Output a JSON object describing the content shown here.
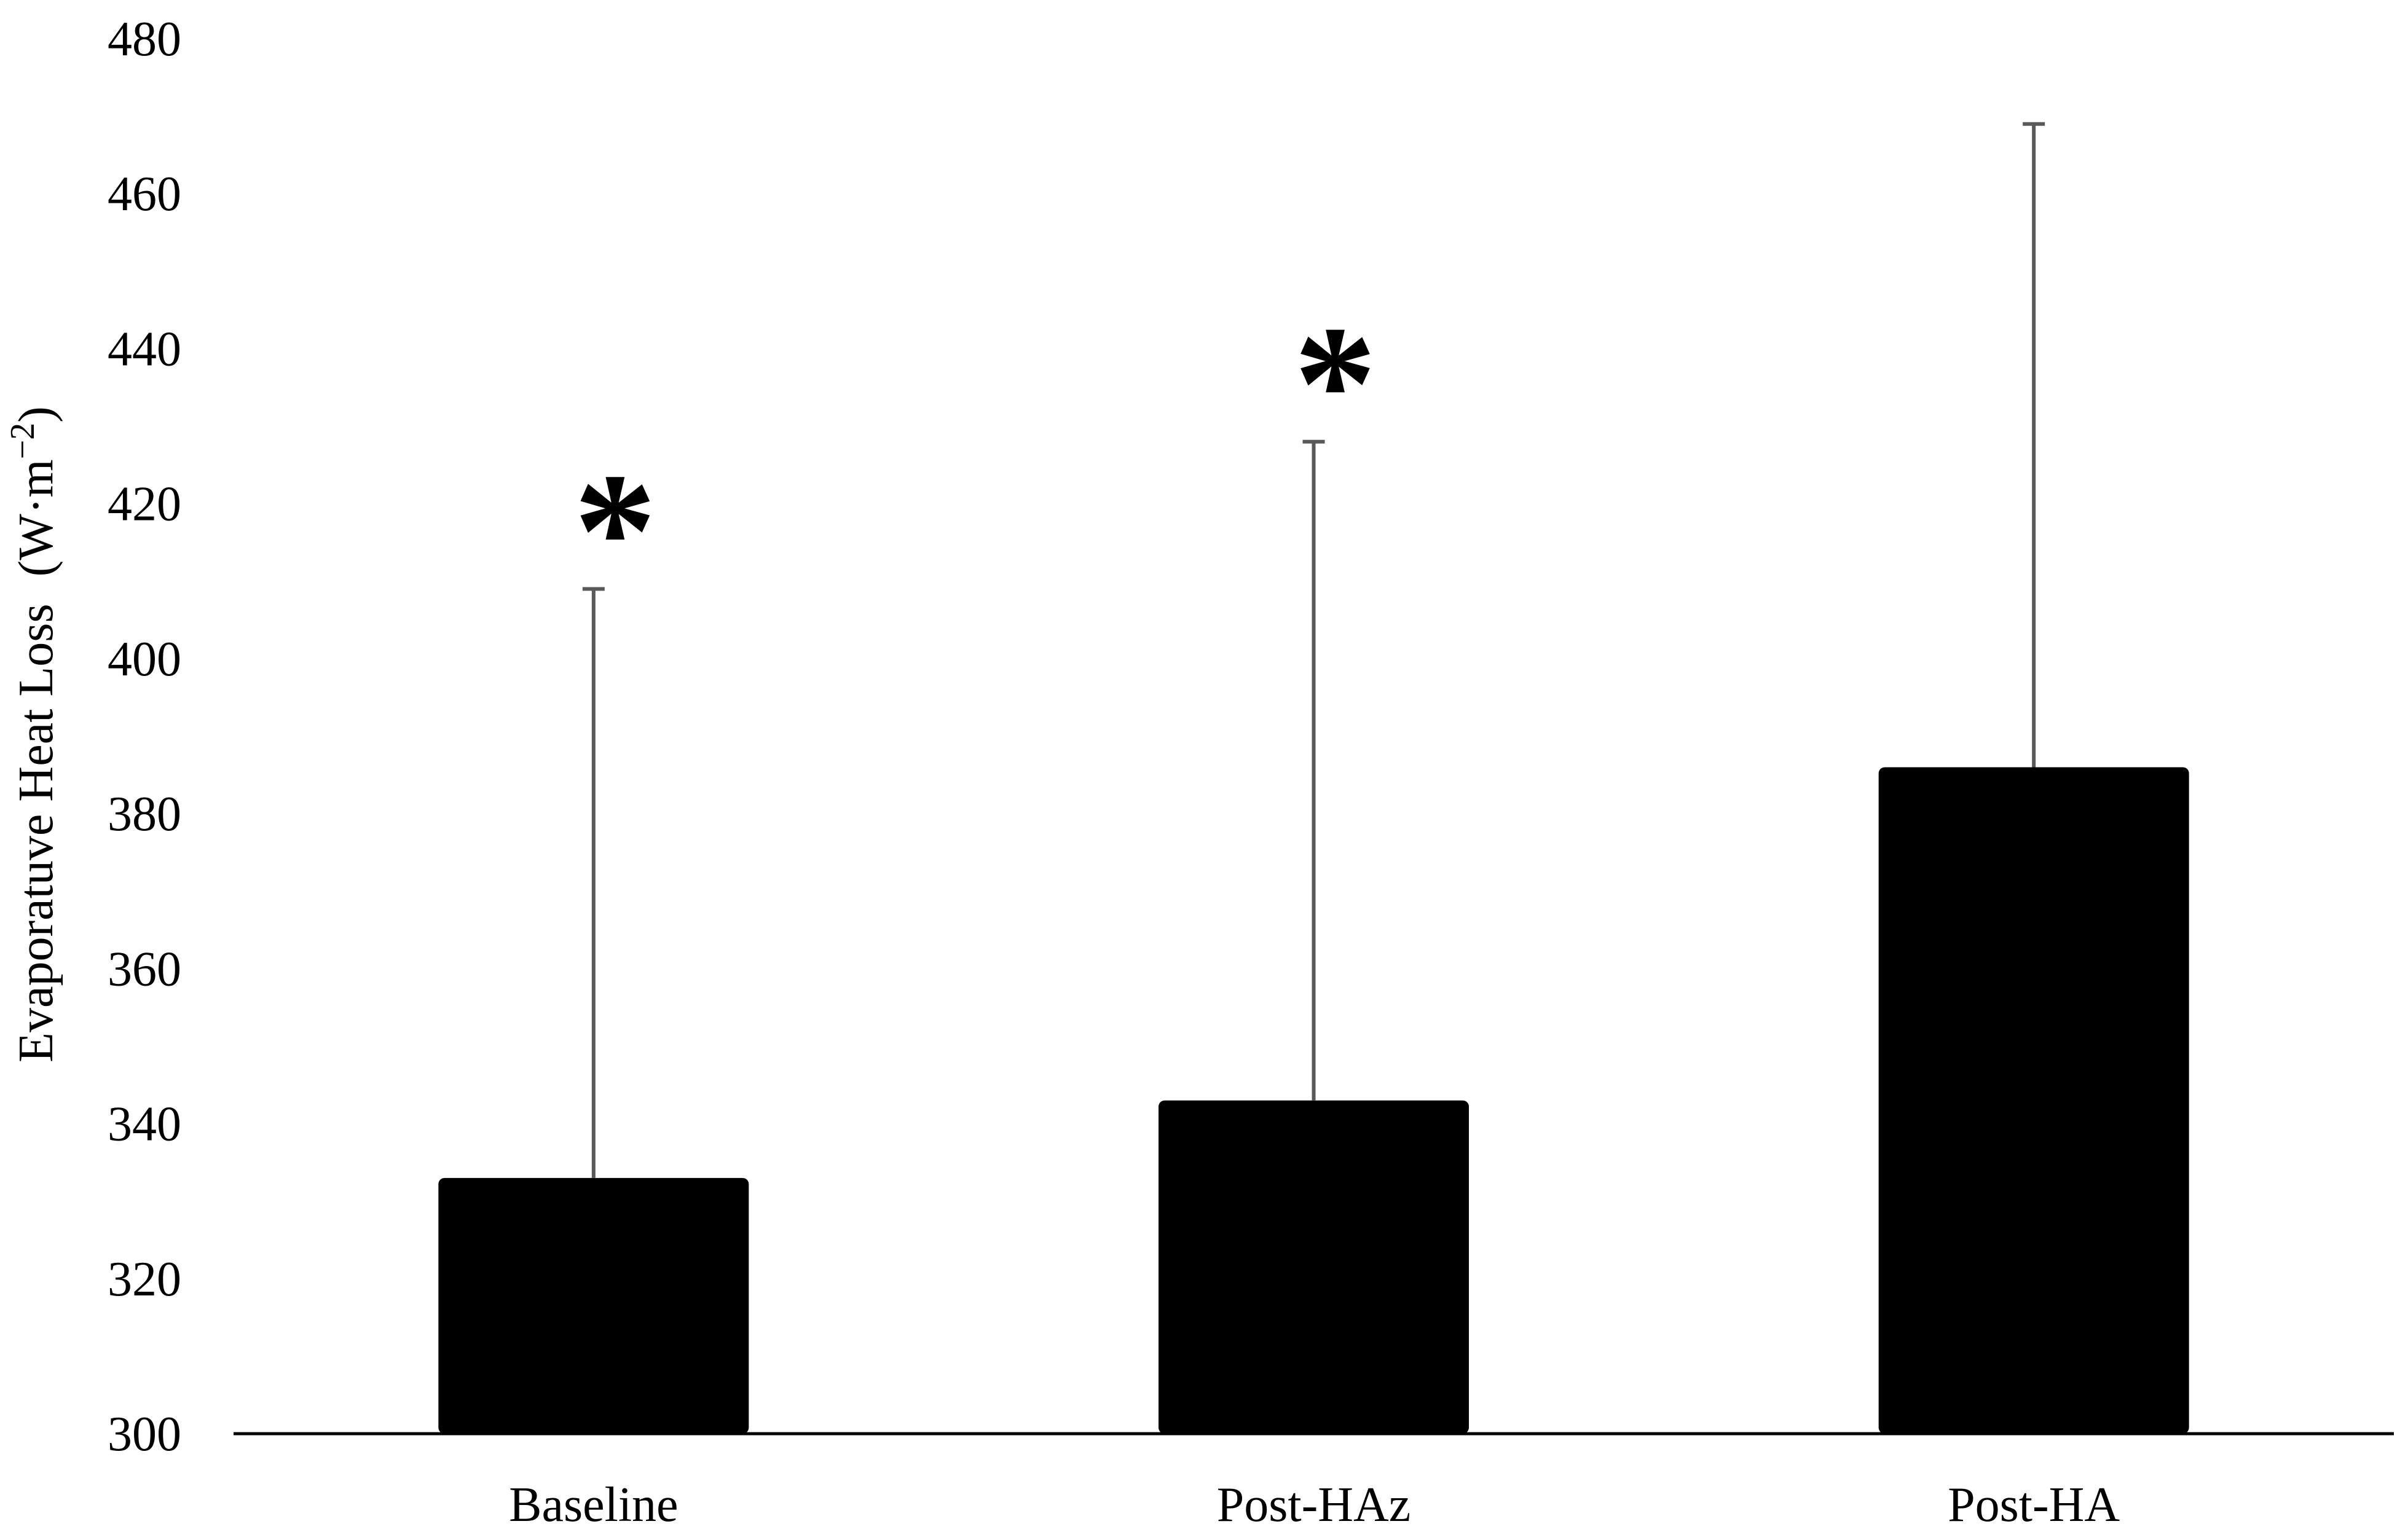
{
  "chart_data": {
    "type": "bar",
    "title": "",
    "xlabel": "",
    "ylabel": "Evaporatuve Heat Loss",
    "ylabel_unit": "(W·m",
    "ylabel_unit_exp": "−2",
    "ylabel_unit_close": ")",
    "ylim": [
      300,
      480
    ],
    "yticks": [
      "300",
      "320",
      "340",
      "360",
      "380",
      "400",
      "420",
      "440",
      "460",
      "480"
    ],
    "yticks_values": [
      300,
      320,
      340,
      360,
      380,
      400,
      420,
      440,
      460,
      480
    ],
    "categories": [
      "Baseline",
      "Post-HAz",
      "Post-HA"
    ],
    "values": [
      333,
      343,
      386
    ],
    "error_upper": [
      409,
      428,
      469
    ],
    "significance": [
      "*",
      "*",
      ""
    ],
    "grid": false,
    "legend": "none",
    "colors": {
      "bar": "#000000",
      "error_bar": "#595959",
      "axis": "#000000"
    }
  }
}
